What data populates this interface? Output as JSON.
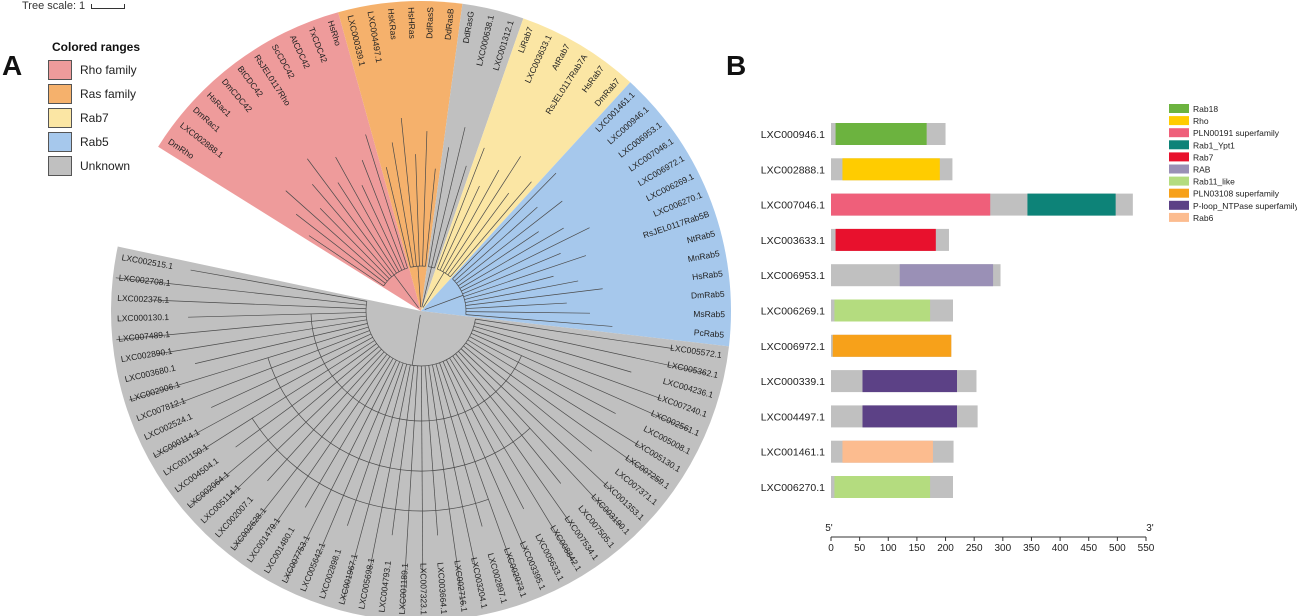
{
  "panels": {
    "a": "A",
    "b": "B"
  },
  "tree_scale": {
    "label": "Tree scale: 1"
  },
  "legend": {
    "title": "Colored ranges",
    "items": [
      {
        "label": "Rho family",
        "color": "#ee9b9b"
      },
      {
        "label": "Ras family",
        "color": "#f5b16c"
      },
      {
        "label": "Rab7",
        "color": "#fbe6a4"
      },
      {
        "label": "Rab5",
        "color": "#a6c8ec"
      },
      {
        "label": "Unknown",
        "color": "#c0c0c0"
      }
    ]
  },
  "tree": {
    "clades": [
      {
        "name": "Rho family",
        "color": "#ee9b9b",
        "leaves": [
          "DmRho",
          "LXC002888.1",
          "DmRac1",
          "HsRac1",
          "DmCDC42",
          "BtCDC42",
          "RsJEL0117Rho",
          "ScCDC42",
          "AtCDC42",
          "TxCDC42",
          "HsRho"
        ]
      },
      {
        "name": "Ras family",
        "color": "#f5b16c",
        "leaves": [
          "LXC000339.1",
          "LXC004497.1",
          "HsKRas",
          "HsHRas",
          "DdRasS",
          "DdRasB"
        ]
      },
      {
        "name": "Unknown (small)",
        "color": "#c0c0c0",
        "leaves": [
          "DdRasG",
          "LXC000638.1",
          "LXC001312.1"
        ]
      },
      {
        "name": "Rab7",
        "color": "#fbe6a4",
        "leaves": [
          "LiRab7",
          "LXC003633.1",
          "AtRab7",
          "RsJEL0117Rab7A",
          "HsRab7",
          "DmRab7"
        ]
      },
      {
        "name": "Rab5",
        "color": "#a6c8ec",
        "leaves": [
          "LXC001461.1",
          "LXC000946.1",
          "LXC006953.1",
          "LXC007046.1",
          "LXC006972.1",
          "LXC006269.1",
          "LXC006270.1",
          "RsJEL0117Rab5B",
          "NtRab5",
          "MnRab5",
          "HsRab5",
          "DmRab5",
          "MsRab5",
          "PcRab5"
        ]
      },
      {
        "name": "Unknown",
        "color": "#c0c0c0",
        "leaves": [
          "LXC005572.1",
          "LXC005362.1",
          "LXC004236.1",
          "LXC007240.1",
          "LXC002561.1",
          "LXC005008.1",
          "LXC005130.1",
          "LXC007259.1",
          "LXC007371.1",
          "LXC001353.1",
          "LXC003190.1",
          "LXC007505.1",
          "LXC007534.1",
          "LXC008842.1",
          "LXC005633.1",
          "LXC003395.1",
          "LXC002073.1",
          "LXC002897.1",
          "LXC003204.1",
          "LXC002716.1",
          "LXC003664.1",
          "LXC007323.1",
          "LXC001189.1",
          "LXC004793.1",
          "LXC005698.1",
          "LXC001967.1",
          "LXC002898.1",
          "LXC005642.1",
          "LXC007753.1",
          "LXC001480.1",
          "LXC001479.1",
          "LXC002628.1",
          "LXC002007.1",
          "LXC005114.1",
          "LXC002064.1",
          "LXC004504.1",
          "LXC001150.1",
          "LXC000114.1",
          "LXC002524.1",
          "LXC007812.1",
          "LXC002906.1",
          "LXC003680.1",
          "LXC002890.1",
          "LXC007489.1",
          "LXC000130.1",
          "LXC002375.1",
          "LXC002708.1",
          "LXC002515.1"
        ]
      }
    ]
  },
  "domains": {
    "proteins": [
      {
        "name": "LXC000946.1",
        "length": 200,
        "domains": [
          {
            "type": "Rab18",
            "start": 8,
            "end": 167
          }
        ]
      },
      {
        "name": "LXC002888.1",
        "length": 212,
        "domains": [
          {
            "type": "Rho",
            "start": 20,
            "end": 190
          }
        ]
      },
      {
        "name": "LXC007046.1",
        "length": 527,
        "domains": [
          {
            "type": "PLN00191 superfamily",
            "start": 0,
            "end": 278
          },
          {
            "type": "Rab1_Ypt1",
            "start": 343,
            "end": 497
          }
        ]
      },
      {
        "name": "LXC003633.1",
        "length": 206,
        "domains": [
          {
            "type": "Rab7",
            "start": 8,
            "end": 183
          }
        ]
      },
      {
        "name": "LXC006953.1",
        "length": 296,
        "domains": [
          {
            "type": "RAB",
            "start": 120,
            "end": 283
          }
        ]
      },
      {
        "name": "LXC006269.1",
        "length": 213,
        "domains": [
          {
            "type": "Rab11_like",
            "start": 6,
            "end": 173
          }
        ]
      },
      {
        "name": "LXC006972.1",
        "length": 210,
        "domains": [
          {
            "type": "PLN03108 superfamily",
            "start": 3,
            "end": 210
          }
        ]
      },
      {
        "name": "LXC000339.1",
        "length": 254,
        "domains": [
          {
            "type": "P-loop_NTPase superfamily",
            "start": 55,
            "end": 220
          }
        ]
      },
      {
        "name": "LXC004497.1",
        "length": 256,
        "domains": [
          {
            "type": "P-loop_NTPase superfamily",
            "start": 55,
            "end": 220
          }
        ]
      },
      {
        "name": "LXC001461.1",
        "length": 214,
        "domains": [
          {
            "type": "Rab6",
            "start": 20,
            "end": 178
          }
        ]
      },
      {
        "name": "LXC006270.1",
        "length": 213,
        "domains": [
          {
            "type": "Rab11_like",
            "start": 6,
            "end": 173
          }
        ]
      }
    ],
    "legend": [
      {
        "type": "Rab18",
        "color": "#6cb33f"
      },
      {
        "type": "Rho",
        "color": "#ffcc00"
      },
      {
        "type": "PLN00191 superfamily",
        "color": "#ef5f7a"
      },
      {
        "type": "Rab1_Ypt1",
        "color": "#0d8378"
      },
      {
        "type": "Rab7",
        "color": "#e8112d"
      },
      {
        "type": "RAB",
        "color": "#9a90b6"
      },
      {
        "type": "Rab11_like",
        "color": "#b4dc7f"
      },
      {
        "type": "PLN03108 superfamily",
        "color": "#f7a11a"
      },
      {
        "type": "P-loop_NTPase superfamily",
        "color": "#5c4186"
      },
      {
        "type": "Rab6",
        "color": "#fcbc8f"
      }
    ],
    "axis": {
      "ticks": [
        0,
        50,
        100,
        150,
        200,
        250,
        300,
        350,
        400,
        450,
        500,
        550
      ],
      "tick_labels": [
        "0",
        "50",
        "100",
        "150",
        "200",
        "250",
        "300",
        "350",
        "400",
        "450",
        "500",
        "550"
      ],
      "start_label": "5'",
      "end_label": "3'",
      "min": 0,
      "max": 550
    },
    "backbone_color": "#c0c0c0"
  }
}
